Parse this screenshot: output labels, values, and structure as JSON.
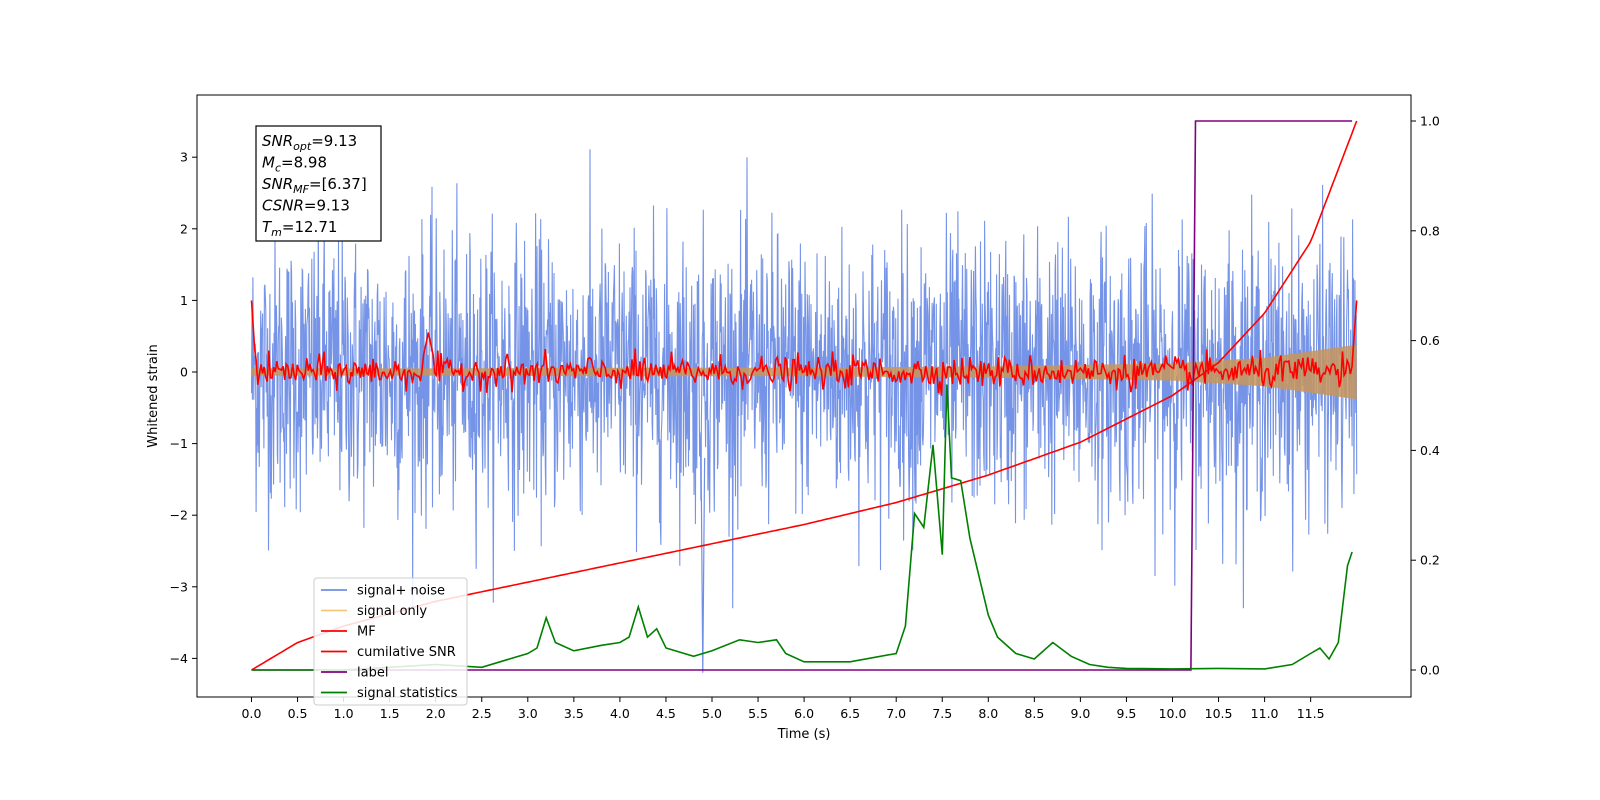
{
  "chart_data": {
    "type": "line",
    "xlabel": "Time (s)",
    "ylabel": "Whitened strain",
    "xlim": [
      -0.6,
      12.6
    ],
    "ylim_left": [
      -4.5,
      3.8
    ],
    "ylim_right": [
      -0.05,
      1.05
    ],
    "xticks": [
      0.0,
      0.5,
      1.0,
      1.5,
      2.0,
      2.5,
      3.0,
      3.5,
      4.0,
      4.5,
      5.0,
      5.5,
      6.0,
      6.5,
      7.0,
      7.5,
      8.0,
      8.5,
      9.0,
      9.5,
      10.0,
      10.5,
      11.0,
      11.5
    ],
    "xtick_labels": [
      "0.0",
      "0.5",
      "1.0",
      "1.5",
      "2.0",
      "2.5",
      "3.0",
      "3.5",
      "4.0",
      "4.5",
      "5.0",
      "5.5",
      "6.0",
      "6.5",
      "7.0",
      "7.5",
      "8.0",
      "8.5",
      "9.0",
      "9.5",
      "10.0",
      "10.5",
      "11.0",
      "11.5"
    ],
    "yticks_left": [
      -4,
      -3,
      -2,
      -1,
      0,
      1,
      2,
      3
    ],
    "ytick_labels_left": [
      "−4",
      "−3",
      "−2",
      "−1",
      "0",
      "1",
      "2",
      "3"
    ],
    "yticks_right": [
      0.0,
      0.2,
      0.4,
      0.6,
      0.8,
      1.0
    ],
    "ytick_labels_right": [
      "0.0",
      "0.2",
      "0.4",
      "0.6",
      "0.8",
      "1.0"
    ],
    "grid": false,
    "legend_position": "lower-left",
    "series": [
      {
        "name": "signal+ noise",
        "color": "#6f8ee6",
        "axis": "left",
        "description_values": {
          "time_range": [
            0.0,
            12.0
          ],
          "amplitude_range": [
            -4.2,
            3.5
          ]
        }
      },
      {
        "name": "signal only",
        "color": "#f5c878",
        "axis": "left",
        "envelope": {
          "x": [
            0.0,
            2.0,
            4.0,
            6.0,
            8.0,
            10.0,
            11.0,
            12.0
          ],
          "amp": [
            0.05,
            0.05,
            0.06,
            0.06,
            0.08,
            0.12,
            0.2,
            0.38
          ]
        }
      },
      {
        "name": "MF",
        "color": "#ff0000",
        "axis": "left",
        "x": [
          0.0,
          0.05,
          0.2,
          1.9,
          2.0,
          7.5,
          11.95,
          12.0
        ],
        "y": [
          1.0,
          0.1,
          0.0,
          0.55,
          0.1,
          0.2,
          0.0,
          1.0
        ]
      },
      {
        "name": "cumilative SNR",
        "color": "#ff0000",
        "axis": "right",
        "x": [
          0.0,
          0.5,
          1.0,
          2.0,
          3.0,
          4.0,
          5.0,
          6.0,
          7.0,
          8.0,
          9.0,
          10.0,
          10.5,
          11.0,
          11.5,
          12.0
        ],
        "y": [
          0.0,
          0.05,
          0.08,
          0.125,
          0.16,
          0.195,
          0.23,
          0.265,
          0.305,
          0.355,
          0.415,
          0.5,
          0.56,
          0.65,
          0.78,
          1.0
        ]
      },
      {
        "name": "label",
        "color": "#800080",
        "axis": "right",
        "x": [
          0.0,
          10.2,
          10.25,
          11.95
        ],
        "y": [
          0.0,
          0.0,
          1.0,
          1.0
        ]
      },
      {
        "name": "signal statistics",
        "color": "#008000",
        "axis": "right",
        "x": [
          0.0,
          1.0,
          2.0,
          2.5,
          2.8,
          3.0,
          3.1,
          3.2,
          3.3,
          3.5,
          3.8,
          4.0,
          4.1,
          4.2,
          4.3,
          4.4,
          4.5,
          4.8,
          5.0,
          5.3,
          5.5,
          5.7,
          5.8,
          6.0,
          6.5,
          7.0,
          7.1,
          7.2,
          7.3,
          7.4,
          7.5,
          7.55,
          7.6,
          7.7,
          7.8,
          8.0,
          8.1,
          8.3,
          8.5,
          8.7,
          8.9,
          9.1,
          9.3,
          9.5,
          10.0,
          10.5,
          11.0,
          11.3,
          11.5,
          11.6,
          11.7,
          11.8,
          11.9,
          11.95
        ],
        "y": [
          0.0,
          0.0,
          0.01,
          0.005,
          0.02,
          0.03,
          0.04,
          0.095,
          0.05,
          0.035,
          0.045,
          0.05,
          0.06,
          0.115,
          0.06,
          0.075,
          0.04,
          0.025,
          0.035,
          0.055,
          0.05,
          0.055,
          0.03,
          0.015,
          0.015,
          0.03,
          0.08,
          0.285,
          0.26,
          0.41,
          0.21,
          0.52,
          0.35,
          0.345,
          0.24,
          0.1,
          0.06,
          0.03,
          0.02,
          0.05,
          0.025,
          0.01,
          0.005,
          0.003,
          0.002,
          0.003,
          0.002,
          0.01,
          0.03,
          0.04,
          0.02,
          0.05,
          0.19,
          0.215
        ]
      }
    ],
    "annotation_box": {
      "lines": [
        {
          "var": "SNR",
          "sub": "opt",
          "value": "=9.13"
        },
        {
          "var": "M",
          "sub": "c",
          "value": "=8.98"
        },
        {
          "var": "SNR",
          "sub": "MF",
          "value": "=[6.37]"
        },
        {
          "var": "CSNR",
          "sub": "",
          "value": "=9.13"
        },
        {
          "var": "T",
          "sub": "m",
          "value": "=12.71"
        }
      ]
    }
  },
  "legend": [
    {
      "label": "signal+ noise",
      "color": "#6f8ee6"
    },
    {
      "label": "signal only",
      "color": "#f5c878"
    },
    {
      "label": "MF",
      "color": "#ff0000"
    },
    {
      "label": "cumilative SNR",
      "color": "#ff0000"
    },
    {
      "label": "label",
      "color": "#800080"
    },
    {
      "label": "signal statistics",
      "color": "#008000"
    }
  ]
}
